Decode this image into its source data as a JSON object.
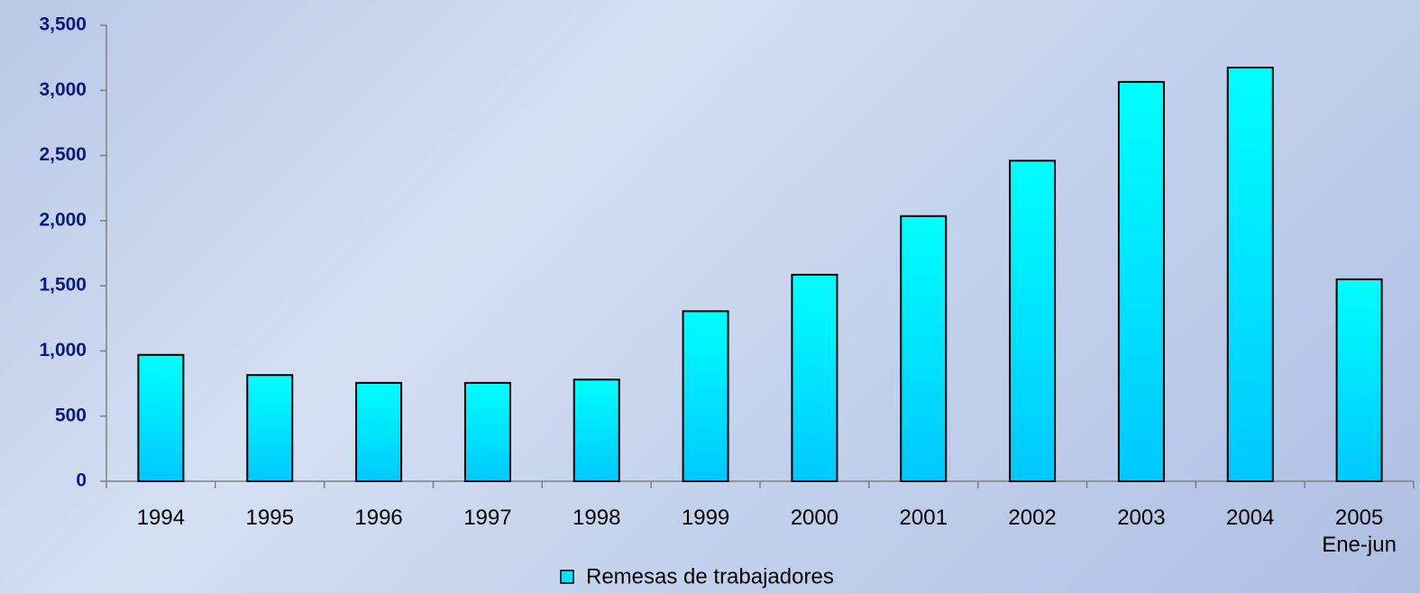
{
  "chart_data": {
    "type": "bar",
    "categories": [
      "1994",
      "1995",
      "1996",
      "1997",
      "1998",
      "1999",
      "2000",
      "2001",
      "2002",
      "2003",
      "2004",
      "2005\nEne-jun"
    ],
    "series": [
      {
        "name": "Remesas de trabajadores",
        "color": "#00e6ff",
        "values": [
          970,
          815,
          755,
          755,
          780,
          1305,
          1585,
          2035,
          2460,
          3065,
          3175,
          1550
        ]
      }
    ],
    "ylim": [
      0,
      3500
    ],
    "yticks": [
      0,
      500,
      {
        "value": 1000,
        "label": "1,000"
      },
      {
        "value": 1500,
        "label": "1,500"
      },
      {
        "value": 2000,
        "label": "2,000"
      },
      {
        "value": 2500,
        "label": "2,500"
      },
      {
        "value": 3000,
        "label": "3,000"
      },
      {
        "value": 3500,
        "label": "3,500"
      }
    ],
    "legend": "bottom"
  }
}
